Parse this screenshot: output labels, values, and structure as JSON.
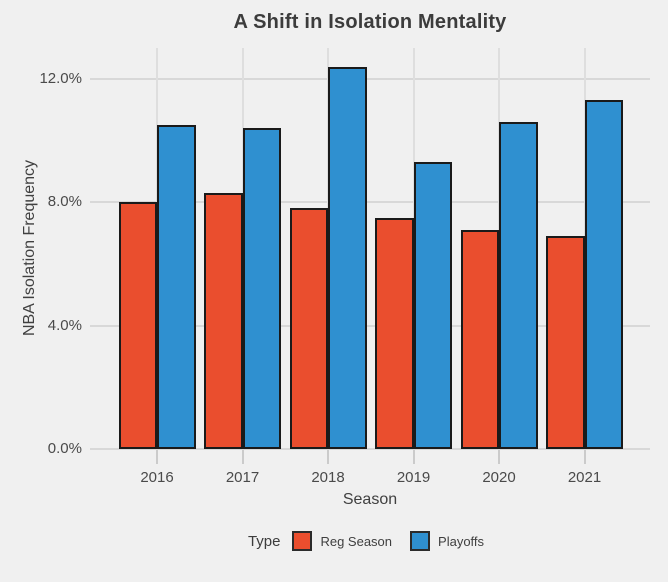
{
  "title": "A Shift in Isolation Mentality",
  "colors": {
    "background": "#F0F0F0",
    "gridline": "#D8D8D8",
    "bar_border": "#1A1A1A",
    "reg_season": "#EA4E2E",
    "playoffs": "#2F90D0",
    "title_text": "#3C3C3C",
    "axis_text": "#4A4A4A"
  },
  "chart_data": {
    "type": "bar",
    "title": "A Shift in Isolation Mentality",
    "xlabel": "Season",
    "ylabel": "NBA Isolation Frequency",
    "categories": [
      "2016",
      "2017",
      "2018",
      "2019",
      "2020",
      "2021"
    ],
    "series": [
      {
        "name": "Reg Season",
        "color": "#EA4E2E",
        "values": [
          8.0,
          8.3,
          7.8,
          7.5,
          7.1,
          6.9
        ]
      },
      {
        "name": "Playoffs",
        "color": "#2F90D0",
        "values": [
          10.5,
          10.4,
          12.4,
          9.3,
          10.6,
          11.3
        ]
      }
    ],
    "unit": "%",
    "ylim": [
      0,
      13.0
    ],
    "yticks": [
      0,
      4,
      8,
      12
    ],
    "ytick_labels": [
      "0.0%",
      "4.0%",
      "8.0%",
      "12.0%"
    ],
    "grid": true,
    "legend_title": "Type",
    "legend_position": "bottom"
  },
  "legend": {
    "title": "Type",
    "items": [
      {
        "label": "Reg Season",
        "color": "#EA4E2E"
      },
      {
        "label": "Playoffs",
        "color": "#2F90D0"
      }
    ]
  }
}
